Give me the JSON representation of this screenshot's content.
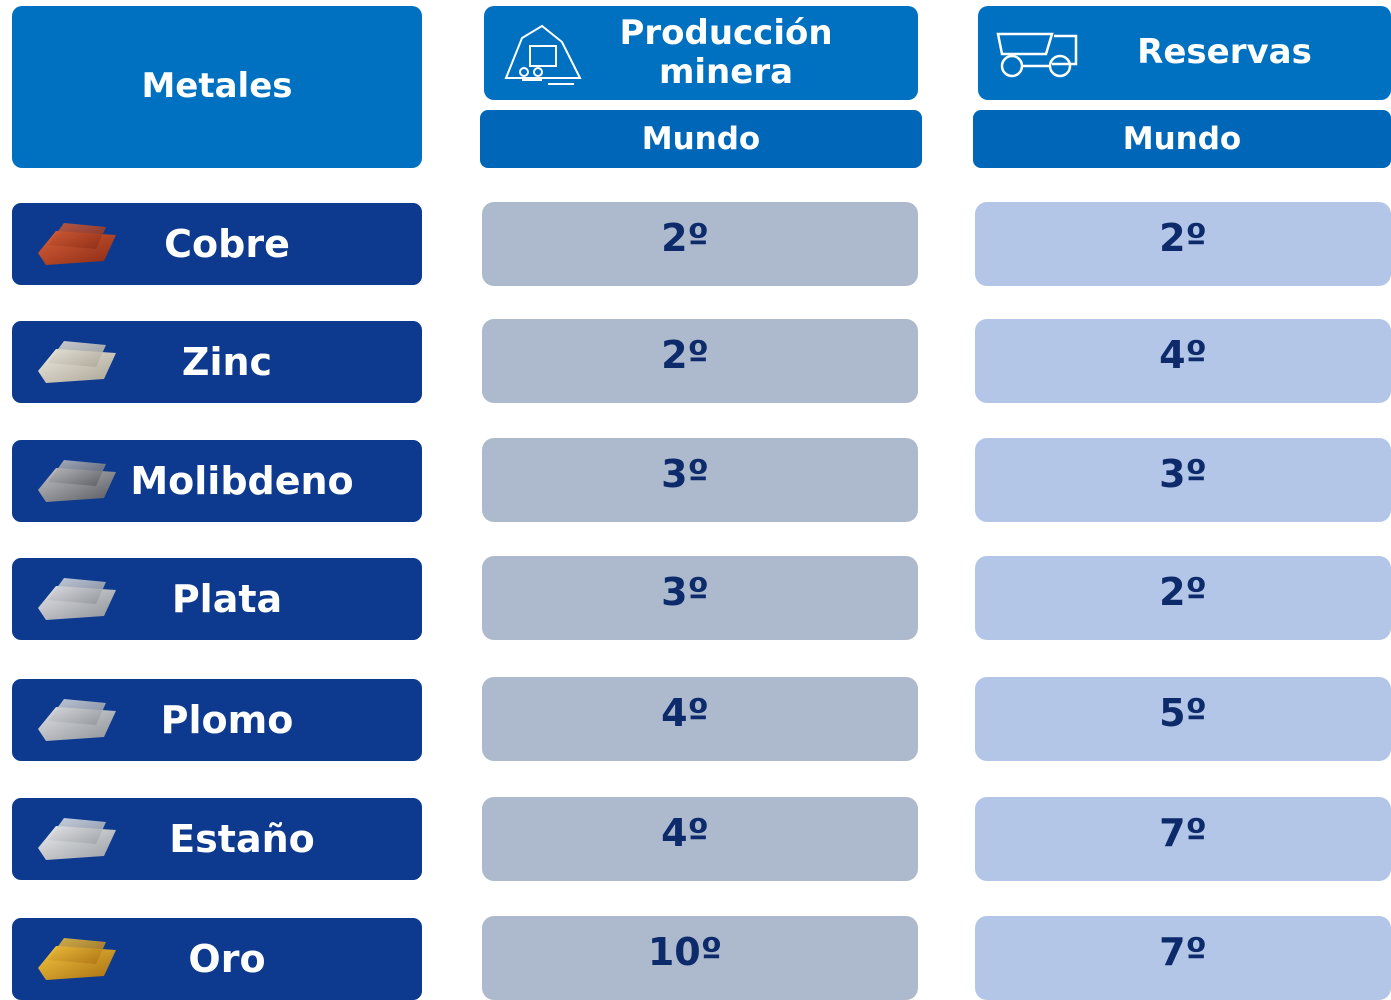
{
  "header": {
    "metal_label": "Metales",
    "columns": [
      {
        "title": "Producción minera",
        "subtitle": "Mundo"
      },
      {
        "title": "Reservas",
        "subtitle": "Mundo"
      }
    ]
  },
  "table": {
    "rows": [
      [
        "Cobre",
        "2º",
        "2º"
      ],
      [
        "Zinc",
        "2º",
        "4º"
      ],
      [
        "Molibdeno",
        "3º",
        "3º"
      ],
      [
        "Plata",
        "3º",
        "2º"
      ],
      [
        "Plomo",
        "4º",
        "5º"
      ],
      [
        "Estaño",
        "4º",
        "7º"
      ],
      [
        "Oro",
        "10º",
        "7º"
      ]
    ]
  }
}
